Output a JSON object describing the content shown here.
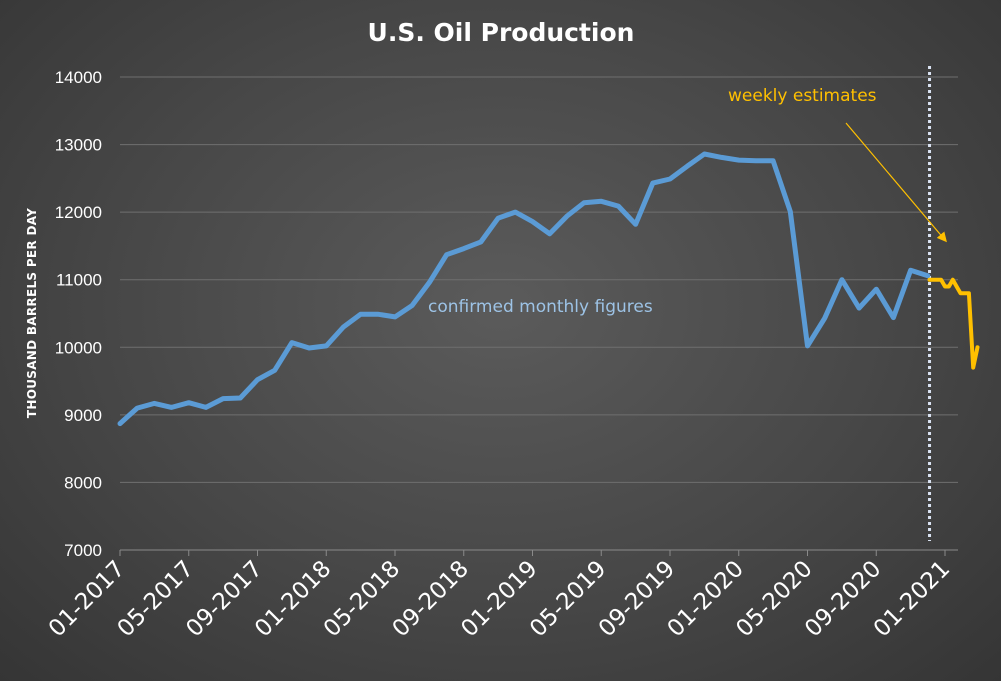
{
  "chart_data": {
    "type": "line",
    "title": "U.S. Oil Production",
    "ylabel": "THOUSAND BARRELS PER DAY",
    "xlabel": "",
    "ylim": [
      7000,
      14000
    ],
    "yticks": [
      7000,
      8000,
      9000,
      10000,
      11000,
      12000,
      13000,
      14000
    ],
    "xticks": [
      "01-2017",
      "05-2017",
      "09-2017",
      "01-2018",
      "05-2018",
      "09-2018",
      "01-2019",
      "05-2019",
      "09-2019",
      "01-2020",
      "05-2020",
      "09-2020",
      "01-2021"
    ],
    "grid": true,
    "series": [
      {
        "name": "confirmed monthly figures",
        "color": "#5b9bd5",
        "x": [
          "2017-01",
          "2017-02",
          "2017-03",
          "2017-04",
          "2017-05",
          "2017-06",
          "2017-07",
          "2017-08",
          "2017-09",
          "2017-10",
          "2017-11",
          "2017-12",
          "2018-01",
          "2018-02",
          "2018-03",
          "2018-04",
          "2018-05",
          "2018-06",
          "2018-07",
          "2018-08",
          "2018-09",
          "2018-10",
          "2018-11",
          "2018-12",
          "2019-01",
          "2019-02",
          "2019-03",
          "2019-04",
          "2019-05",
          "2019-06",
          "2019-07",
          "2019-08",
          "2019-09",
          "2019-10",
          "2019-11",
          "2019-12",
          "2020-01",
          "2020-02",
          "2020-03",
          "2020-04",
          "2020-05",
          "2020-06",
          "2020-07",
          "2020-08",
          "2020-09",
          "2020-10",
          "2020-11",
          "2020-12"
        ],
        "values": [
          8870,
          9100,
          9170,
          9110,
          9180,
          9110,
          9240,
          9250,
          9520,
          9660,
          10070,
          9990,
          10020,
          10300,
          10490,
          10490,
          10450,
          10620,
          10960,
          11370,
          11460,
          11560,
          11910,
          12000,
          11860,
          11680,
          11940,
          12140,
          12160,
          12090,
          11820,
          12430,
          12490,
          12680,
          12860,
          12810,
          12770,
          12760,
          12760,
          12010,
          10020,
          10430,
          11000,
          10580,
          10860,
          10440,
          11140,
          11060
        ]
      },
      {
        "name": "weekly estimates",
        "color": "#ffc000",
        "x": [
          "2020-12-04",
          "2020-12-11",
          "2020-12-18",
          "2020-12-25",
          "2021-01-01",
          "2021-01-08",
          "2021-01-15",
          "2021-01-22",
          "2021-01-29",
          "2021-02-05",
          "2021-02-12",
          "2021-02-19",
          "2021-02-26"
        ],
        "values": [
          11000,
          11000,
          11000,
          11000,
          10900,
          10900,
          11000,
          10900,
          10800,
          10800,
          10800,
          9700,
          10000
        ]
      }
    ],
    "annotations": [
      {
        "text": "confirmed monthly figures",
        "color": "#9dc3e6"
      },
      {
        "text": "weekly estimates",
        "color": "#ffc000"
      }
    ],
    "reference_line": {
      "label": "",
      "x": "2020-12",
      "style": "dotted",
      "color": "#dae3f3"
    }
  }
}
